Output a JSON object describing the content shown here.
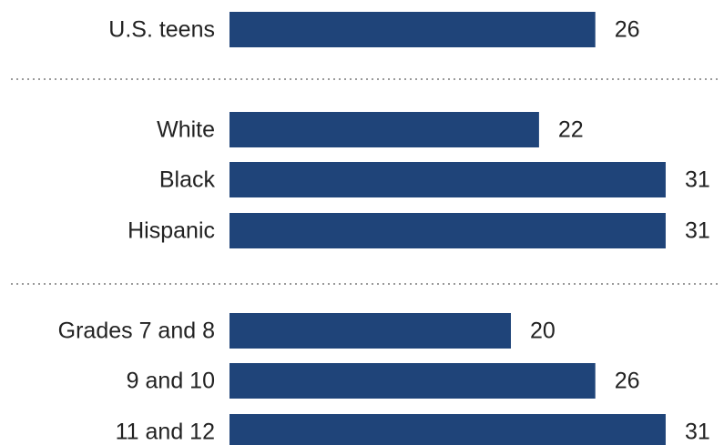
{
  "chart_data": {
    "type": "bar",
    "orientation": "horizontal",
    "bar_color": "#1f4479",
    "categories": [
      "U.S. teens",
      "White",
      "Black",
      "Hispanic",
      "Grades 7 and 8",
      "9 and 10",
      "11 and 12"
    ],
    "values": [
      26,
      22,
      31,
      31,
      20,
      26,
      31
    ],
    "groups": [
      {
        "categories": [
          "U.S. teens"
        ]
      },
      {
        "categories": [
          "White",
          "Black",
          "Hispanic"
        ]
      },
      {
        "categories": [
          "Grades 7 and 8",
          "9 and 10",
          "11 and 12"
        ]
      }
    ],
    "xlim": [
      0,
      31
    ],
    "grid": false,
    "legend": "none"
  }
}
